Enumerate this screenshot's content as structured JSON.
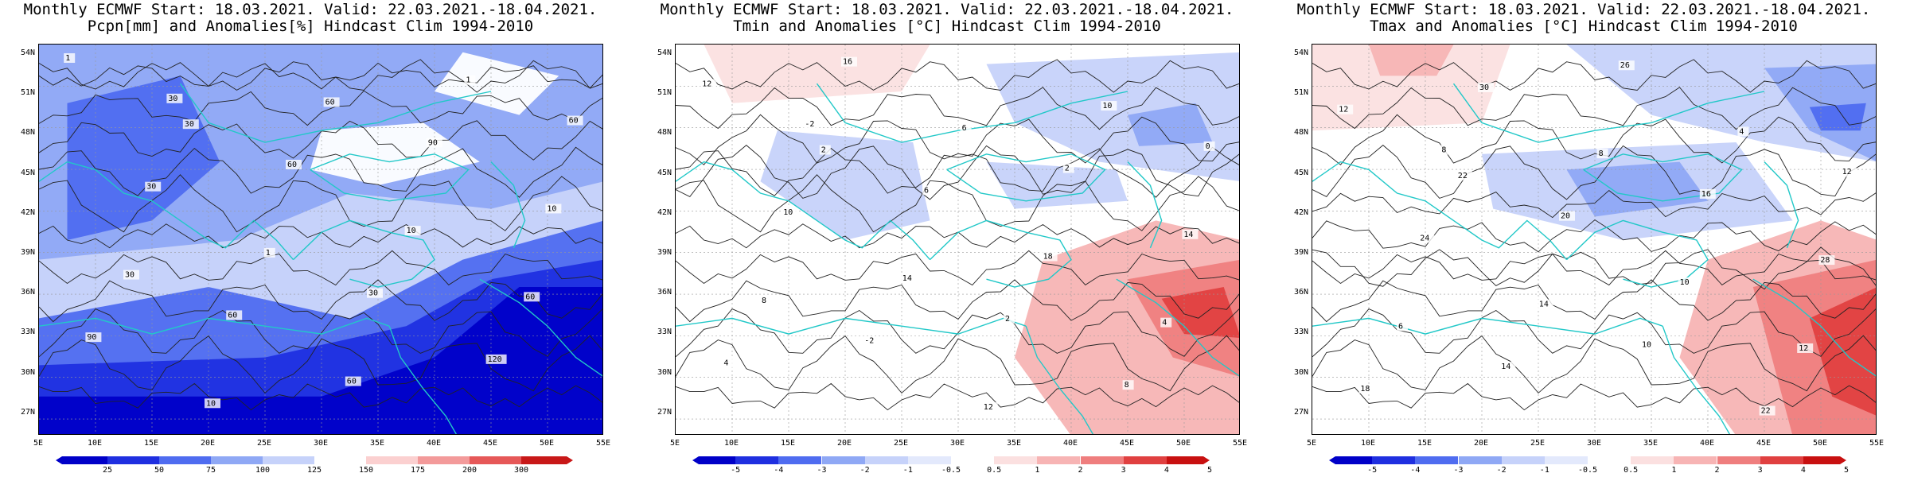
{
  "panels": [
    {
      "title_line1": "Monthly ECMWF Start: 18.03.2021. Valid: 22.03.2021.-18.04.2021.",
      "title_line2": "Pcpn[mm] and Anomalies[%] Hindcast Clim 1994-2010",
      "variable": "precipitation",
      "colorbar_ticks": [
        "25",
        "50",
        "75",
        "100",
        "125",
        "150",
        "175",
        "200",
        "300"
      ],
      "colorbar_colors": [
        "#0000c8",
        "#1f2fe0",
        "#4f6cf0",
        "#8fa8f5",
        "#c6d2fa",
        "#ffffff",
        "#fbd0d0",
        "#f39a9a",
        "#e65858",
        "#c81818"
      ],
      "contour_labels": [
        "30",
        "30",
        "60",
        "60",
        "90",
        "90",
        "60",
        "120",
        "30",
        "60",
        "10",
        "10",
        "10",
        "1",
        "1",
        "1",
        "30",
        "60",
        "60",
        "30"
      ]
    },
    {
      "title_line1": "Monthly ECMWF Start: 18.03.2021. Valid: 22.03.2021.-18.04.2021.",
      "title_line2": "Tmin and Anomalies [°C] Hindcast Clim 1994-2010",
      "variable": "tmin",
      "colorbar_ticks": [
        "-5",
        "-4",
        "-3",
        "-2",
        "-1",
        "-0.5",
        "0.5",
        "1",
        "2",
        "3",
        "4",
        "5"
      ],
      "colorbar_colors": [
        "#0000c8",
        "#1f2fe0",
        "#4f6cf0",
        "#8fa8f5",
        "#c6d2fa",
        "#e3e9fc",
        "#ffffff",
        "#fbe0e0",
        "#f7b4b4",
        "#ef7e7e",
        "#e04040",
        "#c81010"
      ],
      "contour_labels": [
        "-2",
        "2",
        "0",
        "-2",
        "2",
        "4",
        "6",
        "8",
        "10",
        "12",
        "14",
        "16",
        "18",
        "12",
        "14",
        "10",
        "8",
        "6",
        "4",
        "2"
      ]
    },
    {
      "title_line1": "Monthly ECMWF Start: 18.03.2021. Valid: 22.03.2021.-18.04.2021.",
      "title_line2": "Tmax and Anomalies [°C] Hindcast Clim 1994-2010",
      "variable": "tmax",
      "colorbar_ticks": [
        "-5",
        "-4",
        "-3",
        "-2",
        "-1",
        "-0.5",
        "0.5",
        "1",
        "2",
        "3",
        "4",
        "5"
      ],
      "colorbar_colors": [
        "#0000c8",
        "#1f2fe0",
        "#4f6cf0",
        "#8fa8f5",
        "#c6d2fa",
        "#e3e9fc",
        "#ffffff",
        "#fbe0e0",
        "#f7b4b4",
        "#ef7e7e",
        "#e04040",
        "#c81010"
      ],
      "contour_labels": [
        "8",
        "10",
        "12",
        "14",
        "16",
        "18",
        "20",
        "22",
        "24",
        "26",
        "28",
        "30",
        "10",
        "12",
        "14",
        "4",
        "6",
        "8",
        "12",
        "22"
      ]
    }
  ],
  "lat_labels": [
    "54N",
    "51N",
    "48N",
    "45N",
    "42N",
    "39N",
    "36N",
    "33N",
    "30N",
    "27N"
  ],
  "lon_labels": [
    "5E",
    "10E",
    "15E",
    "20E",
    "25E",
    "30E",
    "35E",
    "40E",
    "45E",
    "50E",
    "55E"
  ]
}
